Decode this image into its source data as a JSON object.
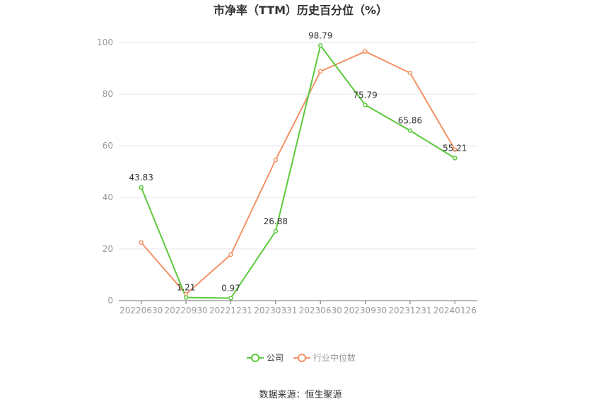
{
  "chart_data": {
    "type": "line",
    "title": "市净率（TTM）历史百分位（%）",
    "x": [
      "20220630",
      "20220930",
      "20221231",
      "20230331",
      "20230630",
      "20230930",
      "20231231",
      "20240126"
    ],
    "ylim": [
      0,
      100
    ],
    "yticks": [
      "0",
      "20",
      "40",
      "60",
      "80",
      "100"
    ],
    "grid": true,
    "legend_position": "bottom",
    "series": [
      {
        "name": "公司",
        "color": "#5cc93b",
        "values": [
          43.83,
          1.21,
          0.97,
          26.88,
          98.79,
          75.79,
          65.86,
          55.21
        ],
        "labels": [
          "43.83",
          "1.21",
          "0.97",
          "26.88",
          "98.79",
          "75.79",
          "65.86",
          "55.21"
        ]
      },
      {
        "name": "行业中位数",
        "color": "#f39266",
        "values": [
          22.5,
          2.5,
          17.8,
          54.5,
          88.8,
          96.5,
          88.2,
          58.5
        ]
      }
    ],
    "source": "数据来源：恒生聚源"
  }
}
